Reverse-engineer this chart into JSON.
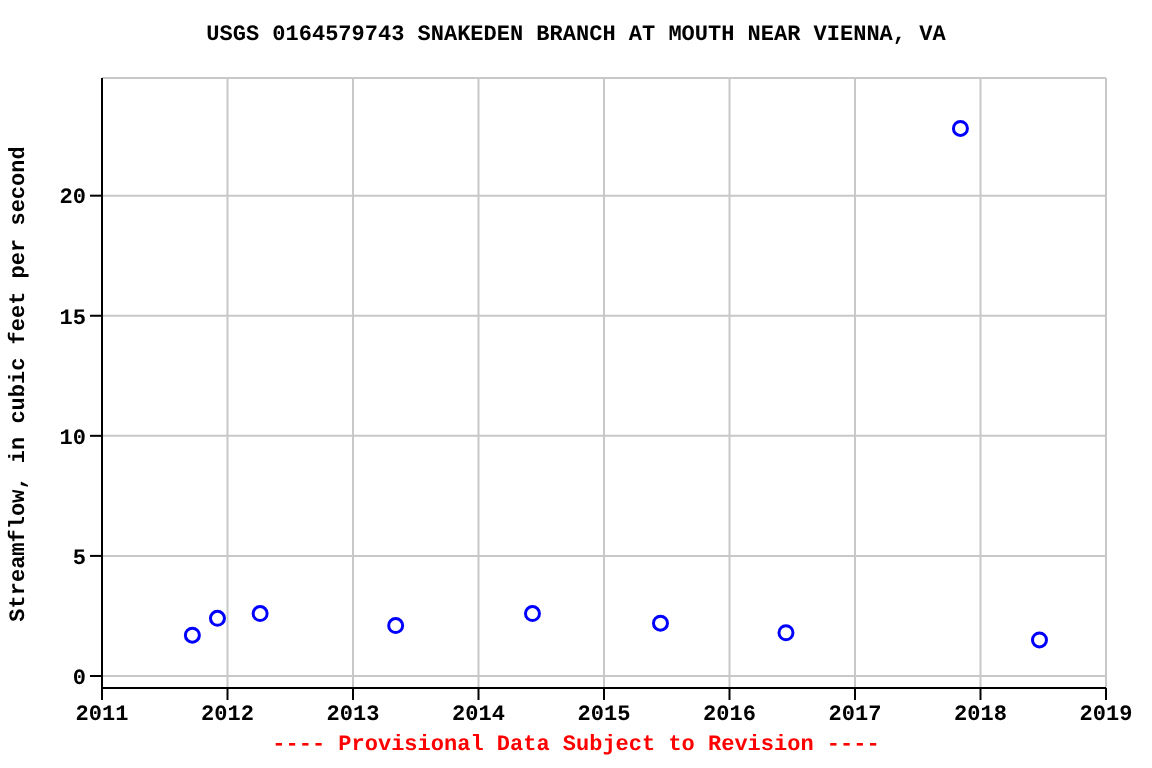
{
  "chart_data": {
    "type": "scatter",
    "title": "USGS 0164579743 SNAKEDEN BRANCH AT MOUTH NEAR VIENNA, VA",
    "ylabel": "Streamflow, in cubic feet per second",
    "annotations": [
      "---- Provisional Data Subject to Revision ----"
    ],
    "x": [
      2011.72,
      2011.92,
      2012.26,
      2013.34,
      2014.43,
      2015.45,
      2016.45,
      2017.84,
      2018.47
    ],
    "series": [
      {
        "color": "#0000ff",
        "values": [
          1.7,
          2.4,
          2.6,
          2.1,
          2.6,
          2.2,
          1.8,
          22.8,
          1.5
        ]
      }
    ],
    "xlim": [
      2011,
      2019
    ],
    "xticks": [
      2011,
      2012,
      2013,
      2014,
      2015,
      2016,
      2017,
      2018,
      2019
    ],
    "ylim": [
      -0.5,
      24.9
    ],
    "yticks": [
      0,
      5,
      10,
      15,
      20
    ],
    "grid": true,
    "marker": "circle"
  }
}
